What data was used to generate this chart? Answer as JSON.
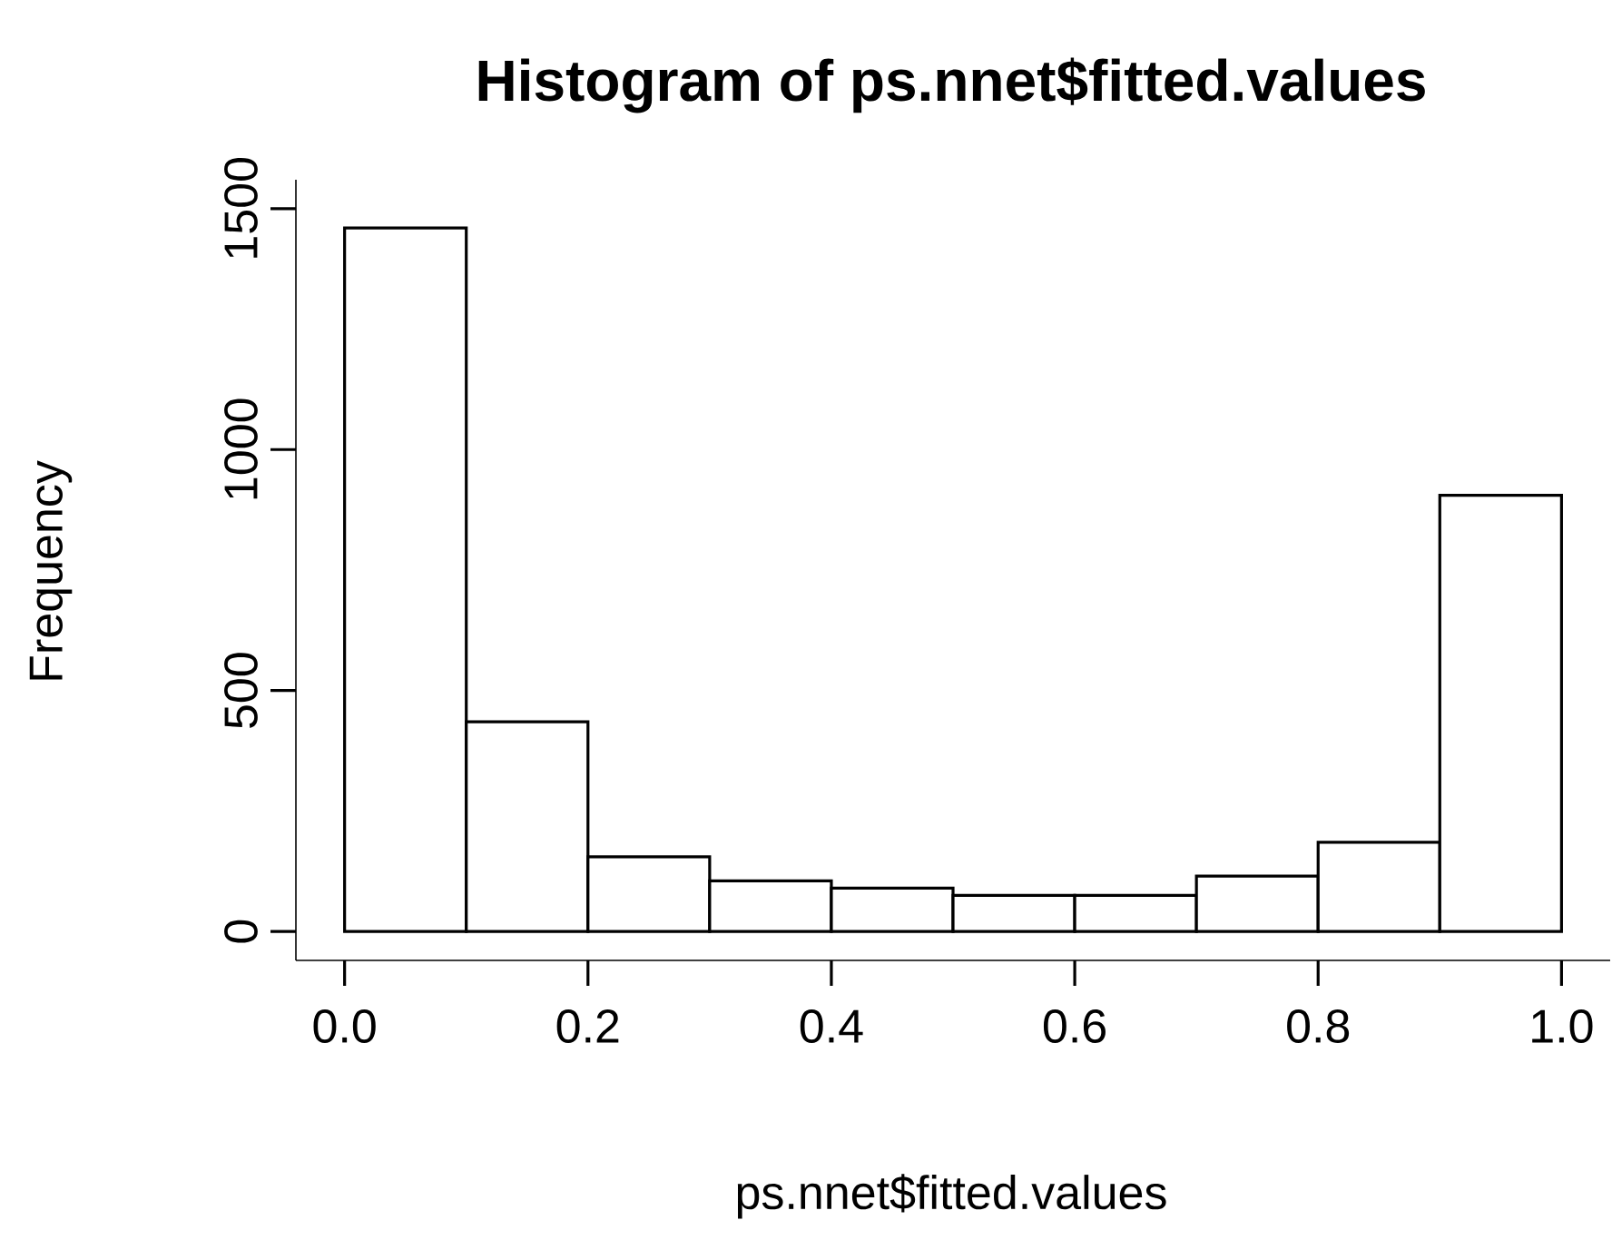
{
  "chart_data": {
    "type": "histogram",
    "title": "Histogram of ps.nnet$fitted.values",
    "xlabel": "ps.nnet$fitted.values",
    "ylabel": "Frequency",
    "bins": [
      0.0,
      0.1,
      0.2,
      0.3,
      0.4,
      0.5,
      0.6,
      0.7,
      0.8,
      0.9,
      1.0
    ],
    "values": [
      1460,
      435,
      155,
      105,
      90,
      75,
      75,
      115,
      185,
      905
    ],
    "color": "#ffffff",
    "xlim": [
      -0.04,
      1.04
    ],
    "xticks": [
      {
        "value": 0,
        "label": "0.0"
      },
      0.2,
      0.4,
      0.6,
      0.8,
      {
        "value": 1,
        "label": "1.0"
      }
    ],
    "ylim": [
      -60,
      1560
    ],
    "yticks": [
      0,
      500,
      1000,
      1500
    ],
    "grid": false
  }
}
